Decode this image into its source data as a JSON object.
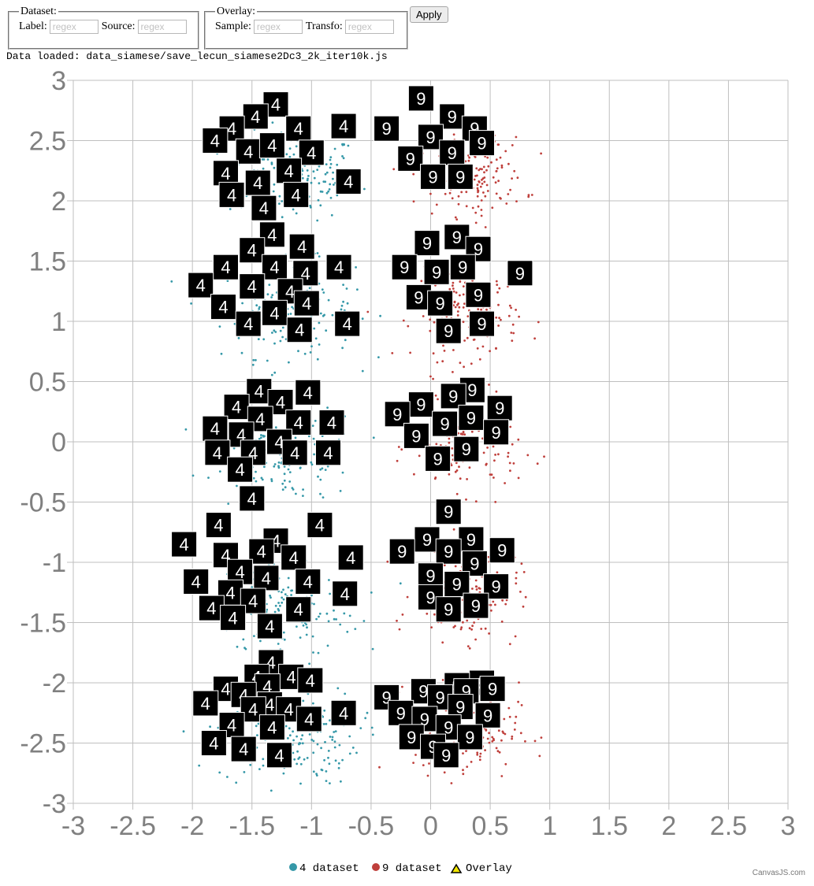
{
  "controls": {
    "dataset_legend": "Dataset:",
    "label_text": "Label:",
    "label_placeholder": "regex",
    "source_text": "Source:",
    "source_placeholder": "regex",
    "overlay_legend": "Overlay:",
    "sample_text": "Sample:",
    "sample_placeholder": "regex",
    "transfo_text": "Transfo:",
    "transfo_placeholder": "regex",
    "apply_label": "Apply"
  },
  "status": "Data loaded: data_siamese/save_lecun_siamese2Dc3_2k_iter10k.js",
  "colors": {
    "series_4": "#3598a8",
    "series_9": "#bf3f3b",
    "overlay_marker": "#f2e600",
    "grid": "#bfbfbf",
    "tick_label": "#808080"
  },
  "chart_data": {
    "type": "scatter",
    "title": "",
    "xlabel": "",
    "ylabel": "",
    "xlim": [
      -3,
      3
    ],
    "ylim": [
      -3,
      3
    ],
    "x_ticks": [
      "-3",
      "-2.5",
      "-2",
      "-1.5",
      "-1",
      "-0.5",
      "0",
      "0.5",
      "1",
      "1.5",
      "2",
      "2.5",
      "3"
    ],
    "y_ticks": [
      "3",
      "2.5",
      "2",
      "1.5",
      "1",
      "0.5",
      "0",
      "-0.5",
      "-1",
      "-1.5",
      "-2",
      "-2.5",
      "-3"
    ],
    "grid": true,
    "legend_position": "bottom-center",
    "legend": [
      {
        "name": "4 dataset",
        "color": "#3598a8",
        "marker": "circle"
      },
      {
        "name": "9 dataset",
        "color": "#bf3f3b",
        "marker": "circle"
      },
      {
        "name": "Overlay",
        "color": "#f2e600",
        "marker": "triangle"
      }
    ],
    "series": [
      {
        "name": "4 dataset",
        "clusters": [
          {
            "cx": -1.15,
            "cy": 2.2,
            "sx": 0.28,
            "sy": 0.18,
            "n": 170
          },
          {
            "cx": -1.2,
            "cy": 1.1,
            "sx": 0.28,
            "sy": 0.2,
            "n": 170
          },
          {
            "cx": -1.2,
            "cy": -0.1,
            "sx": 0.3,
            "sy": 0.2,
            "n": 170
          },
          {
            "cx": -1.2,
            "cy": -1.35,
            "sx": 0.3,
            "sy": 0.22,
            "n": 170
          },
          {
            "cx": -1.2,
            "cy": -2.45,
            "sx": 0.3,
            "sy": 0.2,
            "n": 170
          }
        ]
      },
      {
        "name": "9 dataset",
        "clusters": [
          {
            "cx": 0.35,
            "cy": 2.2,
            "sx": 0.22,
            "sy": 0.16,
            "n": 160
          },
          {
            "cx": 0.3,
            "cy": 1.05,
            "sx": 0.22,
            "sy": 0.18,
            "n": 160
          },
          {
            "cx": 0.3,
            "cy": -0.05,
            "sx": 0.22,
            "sy": 0.18,
            "n": 160
          },
          {
            "cx": 0.3,
            "cy": -1.25,
            "sx": 0.22,
            "sy": 0.2,
            "n": 160
          },
          {
            "cx": 0.3,
            "cy": -2.4,
            "sx": 0.22,
            "sy": 0.2,
            "n": 160
          }
        ]
      }
    ],
    "thumbnails": [
      {
        "d": "4",
        "x": -1.3,
        "y": 2.8
      },
      {
        "d": "4",
        "x": -1.47,
        "y": 2.7
      },
      {
        "d": "4",
        "x": -1.67,
        "y": 2.6
      },
      {
        "d": "4",
        "x": -1.81,
        "y": 2.5
      },
      {
        "d": "4",
        "x": -1.53,
        "y": 2.41
      },
      {
        "d": "4",
        "x": -1.33,
        "y": 2.46
      },
      {
        "d": "4",
        "x": -1.11,
        "y": 2.6
      },
      {
        "d": "4",
        "x": -0.73,
        "y": 2.62
      },
      {
        "d": "4",
        "x": -1.0,
        "y": 2.4
      },
      {
        "d": "4",
        "x": -1.19,
        "y": 2.25
      },
      {
        "d": "4",
        "x": -1.72,
        "y": 2.23
      },
      {
        "d": "4",
        "x": -1.45,
        "y": 2.15
      },
      {
        "d": "4",
        "x": -0.69,
        "y": 2.16
      },
      {
        "d": "4",
        "x": -1.67,
        "y": 2.05
      },
      {
        "d": "4",
        "x": -1.13,
        "y": 2.05
      },
      {
        "d": "4",
        "x": -1.4,
        "y": 1.94
      },
      {
        "d": "4",
        "x": -1.33,
        "y": 1.72
      },
      {
        "d": "4",
        "x": -1.08,
        "y": 1.62
      },
      {
        "d": "4",
        "x": -1.5,
        "y": 1.59
      },
      {
        "d": "4",
        "x": -1.72,
        "y": 1.45
      },
      {
        "d": "4",
        "x": -1.31,
        "y": 1.45
      },
      {
        "d": "4",
        "x": -0.77,
        "y": 1.45
      },
      {
        "d": "4",
        "x": -1.05,
        "y": 1.4
      },
      {
        "d": "4",
        "x": -1.93,
        "y": 1.3
      },
      {
        "d": "4",
        "x": -1.5,
        "y": 1.29
      },
      {
        "d": "4",
        "x": -1.18,
        "y": 1.25
      },
      {
        "d": "4",
        "x": -1.74,
        "y": 1.12
      },
      {
        "d": "4",
        "x": -1.04,
        "y": 1.15
      },
      {
        "d": "4",
        "x": -1.31,
        "y": 1.07
      },
      {
        "d": "4",
        "x": -1.53,
        "y": 0.98
      },
      {
        "d": "4",
        "x": -1.1,
        "y": 0.93
      },
      {
        "d": "4",
        "x": -0.7,
        "y": 0.98
      },
      {
        "d": "4",
        "x": -1.44,
        "y": 0.42
      },
      {
        "d": "4",
        "x": -1.03,
        "y": 0.41
      },
      {
        "d": "4",
        "x": -1.26,
        "y": 0.33
      },
      {
        "d": "4",
        "x": -1.63,
        "y": 0.29
      },
      {
        "d": "4",
        "x": -1.43,
        "y": 0.19
      },
      {
        "d": "4",
        "x": -1.11,
        "y": 0.16
      },
      {
        "d": "4",
        "x": -0.83,
        "y": 0.16
      },
      {
        "d": "4",
        "x": -1.81,
        "y": 0.11
      },
      {
        "d": "4",
        "x": -1.59,
        "y": 0.06
      },
      {
        "d": "4",
        "x": -1.27,
        "y": 0.0
      },
      {
        "d": "4",
        "x": -1.79,
        "y": -0.09
      },
      {
        "d": "4",
        "x": -1.49,
        "y": -0.09
      },
      {
        "d": "4",
        "x": -1.14,
        "y": -0.09
      },
      {
        "d": "4",
        "x": -0.86,
        "y": -0.09
      },
      {
        "d": "4",
        "x": -1.6,
        "y": -0.23
      },
      {
        "d": "4",
        "x": -1.5,
        "y": -0.47
      },
      {
        "d": "4",
        "x": -1.78,
        "y": -0.69
      },
      {
        "d": "4",
        "x": -0.93,
        "y": -0.69
      },
      {
        "d": "4",
        "x": -1.3,
        "y": -0.82
      },
      {
        "d": "4",
        "x": -2.07,
        "y": -0.85
      },
      {
        "d": "4",
        "x": -1.42,
        "y": -0.91
      },
      {
        "d": "4",
        "x": -1.72,
        "y": -0.94
      },
      {
        "d": "4",
        "x": -1.15,
        "y": -0.96
      },
      {
        "d": "4",
        "x": -0.67,
        "y": -0.96
      },
      {
        "d": "4",
        "x": -1.6,
        "y": -1.08
      },
      {
        "d": "4",
        "x": -1.38,
        "y": -1.13
      },
      {
        "d": "4",
        "x": -1.97,
        "y": -1.16
      },
      {
        "d": "4",
        "x": -1.03,
        "y": -1.16
      },
      {
        "d": "4",
        "x": -1.68,
        "y": -1.25
      },
      {
        "d": "4",
        "x": -0.72,
        "y": -1.26
      },
      {
        "d": "4",
        "x": -1.49,
        "y": -1.32
      },
      {
        "d": "4",
        "x": -1.84,
        "y": -1.38
      },
      {
        "d": "4",
        "x": -1.11,
        "y": -1.39
      },
      {
        "d": "4",
        "x": -1.66,
        "y": -1.46
      },
      {
        "d": "4",
        "x": -1.35,
        "y": -1.53
      },
      {
        "d": "4",
        "x": -1.34,
        "y": -1.83
      },
      {
        "d": "4",
        "x": -1.17,
        "y": -1.95
      },
      {
        "d": "4",
        "x": -1.46,
        "y": -1.95
      },
      {
        "d": "4",
        "x": -1.01,
        "y": -1.98
      },
      {
        "d": "4",
        "x": -1.37,
        "y": -2.03
      },
      {
        "d": "4",
        "x": -1.72,
        "y": -2.05
      },
      {
        "d": "4",
        "x": -1.57,
        "y": -2.1
      },
      {
        "d": "4",
        "x": -1.89,
        "y": -2.17
      },
      {
        "d": "4",
        "x": -1.35,
        "y": -2.18
      },
      {
        "d": "4",
        "x": -1.49,
        "y": -2.22
      },
      {
        "d": "4",
        "x": -1.19,
        "y": -2.22
      },
      {
        "d": "4",
        "x": -0.73,
        "y": -2.25
      },
      {
        "d": "4",
        "x": -1.02,
        "y": -2.3
      },
      {
        "d": "4",
        "x": -1.67,
        "y": -2.35
      },
      {
        "d": "4",
        "x": -1.33,
        "y": -2.37
      },
      {
        "d": "4",
        "x": -1.82,
        "y": -2.5
      },
      {
        "d": "4",
        "x": -1.57,
        "y": -2.55
      },
      {
        "d": "4",
        "x": -1.27,
        "y": -2.6
      },
      {
        "d": "9",
        "x": -0.08,
        "y": 2.85
      },
      {
        "d": "9",
        "x": 0.18,
        "y": 2.7
      },
      {
        "d": "9",
        "x": 0.37,
        "y": 2.6
      },
      {
        "d": "9",
        "x": -0.37,
        "y": 2.6
      },
      {
        "d": "9",
        "x": 0.0,
        "y": 2.53
      },
      {
        "d": "9",
        "x": 0.43,
        "y": 2.48
      },
      {
        "d": "9",
        "x": 0.18,
        "y": 2.4
      },
      {
        "d": "9",
        "x": -0.17,
        "y": 2.35
      },
      {
        "d": "9",
        "x": 0.02,
        "y": 2.2
      },
      {
        "d": "9",
        "x": 0.25,
        "y": 2.2
      },
      {
        "d": "9",
        "x": -0.03,
        "y": 1.65
      },
      {
        "d": "9",
        "x": 0.22,
        "y": 1.7
      },
      {
        "d": "9",
        "x": 0.4,
        "y": 1.6
      },
      {
        "d": "9",
        "x": -0.22,
        "y": 1.45
      },
      {
        "d": "9",
        "x": 0.05,
        "y": 1.41
      },
      {
        "d": "9",
        "x": 0.27,
        "y": 1.45
      },
      {
        "d": "9",
        "x": 0.75,
        "y": 1.4
      },
      {
        "d": "9",
        "x": 0.4,
        "y": 1.22
      },
      {
        "d": "9",
        "x": -0.1,
        "y": 1.2
      },
      {
        "d": "9",
        "x": 0.08,
        "y": 1.15
      },
      {
        "d": "9",
        "x": 0.43,
        "y": 0.98
      },
      {
        "d": "9",
        "x": 0.15,
        "y": 0.92
      },
      {
        "d": "9",
        "x": 0.35,
        "y": 0.43
      },
      {
        "d": "9",
        "x": 0.19,
        "y": 0.38
      },
      {
        "d": "9",
        "x": -0.08,
        "y": 0.31
      },
      {
        "d": "9",
        "x": 0.58,
        "y": 0.28
      },
      {
        "d": "9",
        "x": -0.28,
        "y": 0.23
      },
      {
        "d": "9",
        "x": 0.34,
        "y": 0.2
      },
      {
        "d": "9",
        "x": 0.12,
        "y": 0.15
      },
      {
        "d": "9",
        "x": 0.55,
        "y": 0.08
      },
      {
        "d": "9",
        "x": -0.12,
        "y": 0.05
      },
      {
        "d": "9",
        "x": 0.3,
        "y": -0.06
      },
      {
        "d": "9",
        "x": 0.06,
        "y": -0.14
      },
      {
        "d": "9",
        "x": 0.15,
        "y": -0.58
      },
      {
        "d": "9",
        "x": -0.03,
        "y": -0.81
      },
      {
        "d": "9",
        "x": 0.34,
        "y": -0.81
      },
      {
        "d": "9",
        "x": -0.24,
        "y": -0.91
      },
      {
        "d": "9",
        "x": 0.15,
        "y": -0.91
      },
      {
        "d": "9",
        "x": 0.6,
        "y": -0.9
      },
      {
        "d": "9",
        "x": 0.37,
        "y": -1.01
      },
      {
        "d": "9",
        "x": 0.0,
        "y": -1.11
      },
      {
        "d": "9",
        "x": 0.22,
        "y": -1.18
      },
      {
        "d": "9",
        "x": 0.55,
        "y": -1.2
      },
      {
        "d": "9",
        "x": 0.0,
        "y": -1.29
      },
      {
        "d": "9",
        "x": 0.38,
        "y": -1.36
      },
      {
        "d": "9",
        "x": 0.15,
        "y": -1.39
      },
      {
        "d": "9",
        "x": 0.43,
        "y": -2.0
      },
      {
        "d": "9",
        "x": 0.22,
        "y": -2.02
      },
      {
        "d": "9",
        "x": 0.3,
        "y": -2.07
      },
      {
        "d": "9",
        "x": -0.06,
        "y": -2.07
      },
      {
        "d": "9",
        "x": 0.52,
        "y": -2.05
      },
      {
        "d": "9",
        "x": 0.08,
        "y": -2.12
      },
      {
        "d": "9",
        "x": -0.37,
        "y": -2.12
      },
      {
        "d": "9",
        "x": 0.25,
        "y": -2.2
      },
      {
        "d": "9",
        "x": -0.25,
        "y": -2.25
      },
      {
        "d": "9",
        "x": 0.48,
        "y": -2.27
      },
      {
        "d": "9",
        "x": -0.05,
        "y": -2.3
      },
      {
        "d": "9",
        "x": 0.15,
        "y": -2.37
      },
      {
        "d": "9",
        "x": -0.16,
        "y": -2.45
      },
      {
        "d": "9",
        "x": 0.33,
        "y": -2.45
      },
      {
        "d": "9",
        "x": 0.02,
        "y": -2.53
      },
      {
        "d": "9",
        "x": 0.13,
        "y": -2.6
      }
    ],
    "credit": "CanvasJS.com"
  }
}
